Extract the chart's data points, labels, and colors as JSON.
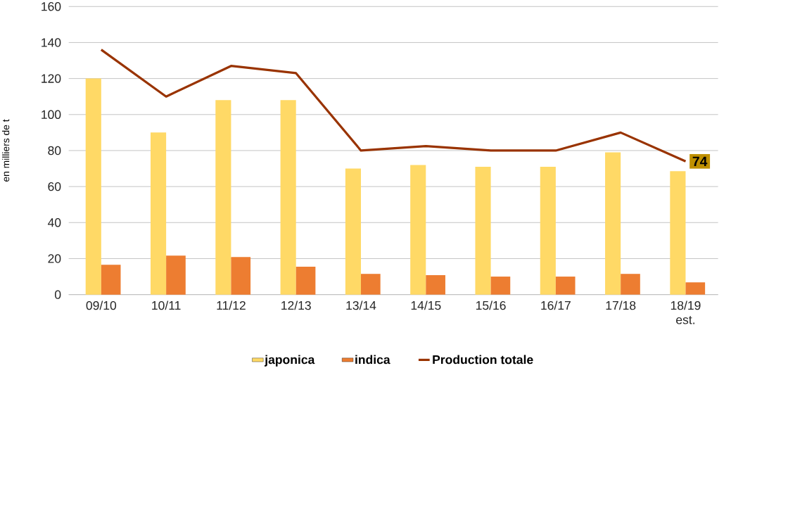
{
  "chart_data": {
    "type": "bar",
    "ylabel": "en milliers de t",
    "categories": [
      "09/10",
      "10/11",
      "11/12",
      "12/13",
      "13/14",
      "14/15",
      "15/16",
      "16/17",
      "17/18",
      "18/19 est."
    ],
    "series": [
      {
        "name": "japonica",
        "color": "#ffd966",
        "values": [
          120,
          90,
          108,
          108,
          70,
          72,
          71,
          71,
          79,
          68.5
        ]
      },
      {
        "name": "indica",
        "color": "#ed7d31",
        "values": [
          16.6,
          21.6,
          20.9,
          15.5,
          11.5,
          10.8,
          10,
          10,
          11.5,
          6.8
        ]
      },
      {
        "name": "Production totale",
        "type": "line",
        "color": "#993300",
        "values": [
          136,
          110,
          127,
          123,
          80,
          82.5,
          80,
          80,
          90,
          74
        ],
        "value_labels": [
          null,
          null,
          null,
          null,
          null,
          null,
          null,
          null,
          null,
          "74"
        ]
      }
    ],
    "ylim": [
      0,
      160
    ],
    "yticks": [
      0,
      20,
      40,
      60,
      80,
      100,
      120,
      140,
      160
    ],
    "grid": "y",
    "legend": "bottom",
    "marker": "none"
  }
}
